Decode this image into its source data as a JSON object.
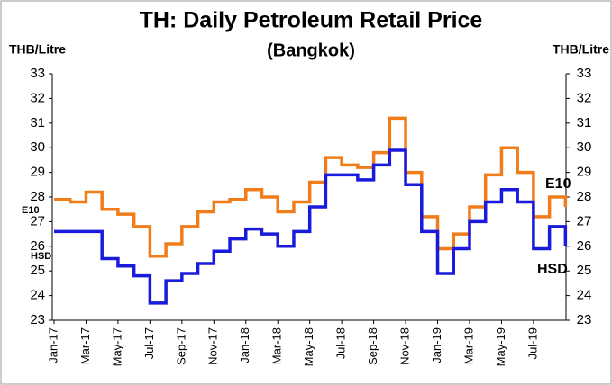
{
  "chart_data": {
    "type": "line",
    "title": "TH: Daily Petroleum Retail Price",
    "subtitle": "(Bangkok)",
    "y_label": "THB/Litre",
    "y2_label": "THB/Litre",
    "categories": [
      "Jan-17",
      null,
      "Mar-17",
      null,
      "May-17",
      null,
      "Jul-17",
      null,
      "Sep-17",
      null,
      "Nov-17",
      null,
      "Jan-18",
      null,
      "Mar-18",
      null,
      "May-18",
      null,
      "Jul-18",
      null,
      "Sep-18",
      null,
      "Nov-18",
      null,
      "Jan-19",
      null,
      "Mar-19",
      null,
      "May-19",
      null,
      "Jul-19",
      null,
      null
    ],
    "series": [
      {
        "name": "E10",
        "color": "#f07d1a",
        "values": [
          27.9,
          27.8,
          28.2,
          27.5,
          27.3,
          26.8,
          25.6,
          26.1,
          26.8,
          27.4,
          27.8,
          27.9,
          28.3,
          28.0,
          27.4,
          27.8,
          28.6,
          29.6,
          29.3,
          29.2,
          29.8,
          31.2,
          29.0,
          27.2,
          25.9,
          26.5,
          27.6,
          28.9,
          30.0,
          29.0,
          27.2,
          28.0,
          27.6
        ]
      },
      {
        "name": "HSD",
        "color": "#1a1adc",
        "values": [
          26.6,
          26.6,
          26.6,
          25.5,
          25.2,
          24.8,
          23.7,
          24.6,
          24.9,
          25.3,
          25.8,
          26.3,
          26.7,
          26.5,
          26.0,
          26.6,
          27.6,
          28.9,
          28.9,
          28.7,
          29.3,
          29.9,
          28.5,
          26.6,
          24.9,
          25.9,
          27.0,
          27.8,
          28.3,
          27.8,
          25.9,
          26.8,
          26.0
        ]
      }
    ],
    "ylim": [
      23,
      33
    ],
    "yticks": [
      23,
      24,
      25,
      26,
      27,
      28,
      29,
      30,
      31,
      32,
      33
    ],
    "y2lim": [
      23,
      33
    ],
    "y2ticks": [
      23,
      24,
      25,
      26,
      27,
      28,
      29,
      30,
      31,
      32,
      33
    ]
  }
}
